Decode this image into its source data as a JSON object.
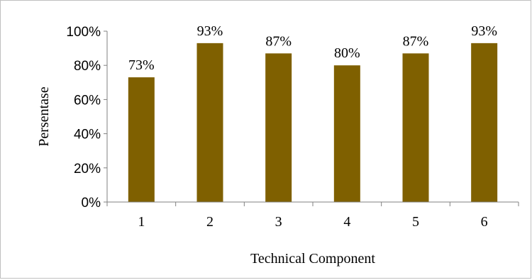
{
  "chart_data": {
    "type": "bar",
    "categories": [
      "1",
      "2",
      "3",
      "4",
      "5",
      "6"
    ],
    "values": [
      73,
      93,
      87,
      80,
      87,
      93
    ],
    "data_labels": [
      "73%",
      "93%",
      "87%",
      "80%",
      "87%",
      "93%"
    ],
    "xlabel": "Technical Component",
    "ylabel": "Persentase",
    "ylim": [
      0,
      100
    ],
    "yticks": [
      "0%",
      "20%",
      "40%",
      "60%",
      "80%",
      "100%"
    ],
    "grid": false,
    "legend": "none",
    "bar_color": "#7f6000"
  }
}
